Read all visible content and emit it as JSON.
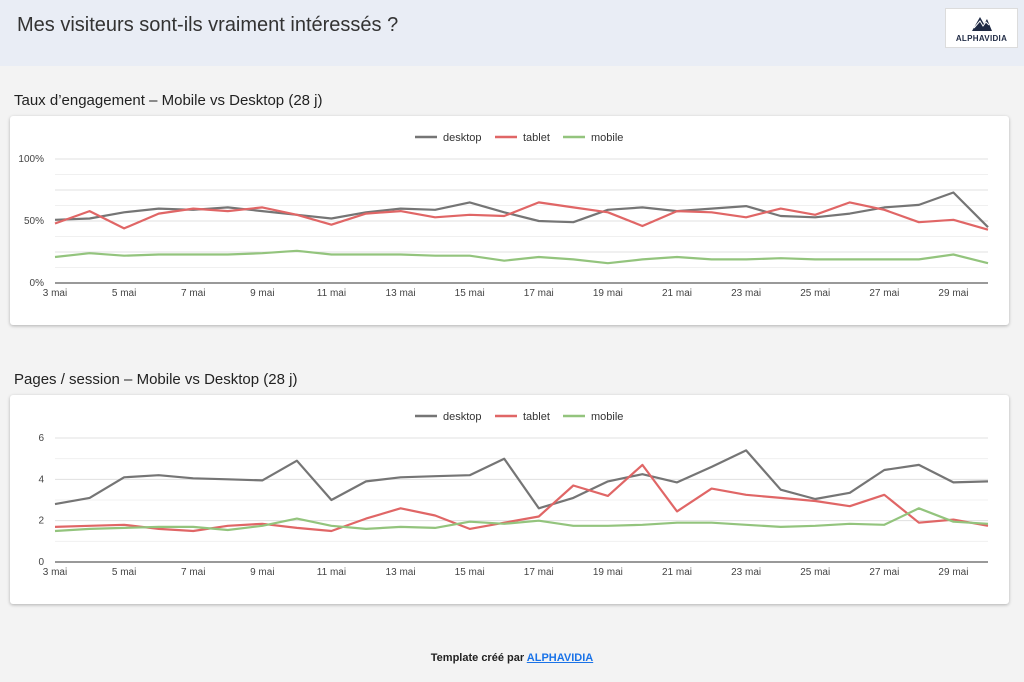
{
  "header": {
    "title": "Mes visiteurs sont-ils vraiment intéressés ?",
    "logo_text": "ALPHAVIDIA"
  },
  "footer": {
    "prefix": "Template créé par",
    "link_text": "ALPHAVIDIA"
  },
  "colors": {
    "desktop": "#757575",
    "tablet": "#e06666",
    "mobile": "#93c47d"
  },
  "chart_data": [
    {
      "type": "line",
      "title": "Taux d’engagement – Mobile vs Desktop (28 j)",
      "x": [
        "3 mai",
        "4 mai",
        "5 mai",
        "6 mai",
        "7 mai",
        "8 mai",
        "9 mai",
        "10 mai",
        "11 mai",
        "12 mai",
        "13 mai",
        "14 mai",
        "15 mai",
        "16 mai",
        "17 mai",
        "18 mai",
        "19 mai",
        "20 mai",
        "21 mai",
        "22 mai",
        "23 mai",
        "24 mai",
        "25 mai",
        "26 mai",
        "27 mai",
        "28 mai",
        "29 mai",
        "30 mai"
      ],
      "x_tick_labels": [
        "3 mai",
        "5 mai",
        "7 mai",
        "9 mai",
        "11 mai",
        "13 mai",
        "15 mai",
        "17 mai",
        "19 mai",
        "21 mai",
        "23 mai",
        "25 mai",
        "27 mai",
        "29 mai"
      ],
      "y_tick_labels": [
        "0%",
        "50%",
        "100%"
      ],
      "ylim": [
        0,
        100
      ],
      "legend_position": "top",
      "series": [
        {
          "name": "desktop",
          "values": [
            51,
            52,
            57,
            60,
            59,
            61,
            58,
            55,
            52,
            57,
            60,
            59,
            65,
            57,
            50,
            49,
            59,
            61,
            58,
            60,
            62,
            54,
            53,
            56,
            61,
            63,
            73,
            45
          ]
        },
        {
          "name": "tablet",
          "values": [
            48,
            58,
            44,
            56,
            60,
            58,
            61,
            55,
            47,
            56,
            58,
            53,
            55,
            54,
            65,
            61,
            57,
            46,
            58,
            57,
            53,
            60,
            55,
            65,
            59,
            49,
            51,
            43
          ]
        },
        {
          "name": "mobile",
          "values": [
            21,
            24,
            22,
            23,
            23,
            23,
            24,
            26,
            23,
            23,
            23,
            22,
            22,
            18,
            21,
            19,
            16,
            19,
            21,
            19,
            19,
            20,
            19,
            19,
            19,
            19,
            23,
            16
          ]
        }
      ]
    },
    {
      "type": "line",
      "title": "Pages / session – Mobile vs Desktop (28 j)",
      "x": [
        "3 mai",
        "4 mai",
        "5 mai",
        "6 mai",
        "7 mai",
        "8 mai",
        "9 mai",
        "10 mai",
        "11 mai",
        "12 mai",
        "13 mai",
        "14 mai",
        "15 mai",
        "16 mai",
        "17 mai",
        "18 mai",
        "19 mai",
        "20 mai",
        "21 mai",
        "22 mai",
        "23 mai",
        "24 mai",
        "25 mai",
        "26 mai",
        "27 mai",
        "28 mai",
        "29 mai",
        "30 mai"
      ],
      "x_tick_labels": [
        "3 mai",
        "5 mai",
        "7 mai",
        "9 mai",
        "11 mai",
        "13 mai",
        "15 mai",
        "17 mai",
        "19 mai",
        "21 mai",
        "23 mai",
        "25 mai",
        "27 mai",
        "29 mai"
      ],
      "y_tick_labels": [
        "0",
        "2",
        "4",
        "6"
      ],
      "ylim": [
        0,
        6
      ],
      "legend_position": "top",
      "series": [
        {
          "name": "desktop",
          "values": [
            2.8,
            3.1,
            4.1,
            4.2,
            4.05,
            4.0,
            3.95,
            4.9,
            3.0,
            3.9,
            4.1,
            4.15,
            4.2,
            5.0,
            2.6,
            3.1,
            3.9,
            4.25,
            3.85,
            4.6,
            5.4,
            3.5,
            3.05,
            3.35,
            4.45,
            4.7,
            3.85,
            3.9
          ]
        },
        {
          "name": "tablet",
          "values": [
            1.7,
            1.75,
            1.8,
            1.6,
            1.5,
            1.75,
            1.85,
            1.65,
            1.5,
            2.1,
            2.6,
            2.25,
            1.6,
            1.9,
            2.2,
            3.7,
            3.2,
            4.7,
            2.45,
            3.55,
            3.25,
            3.1,
            2.95,
            2.7,
            3.25,
            1.9,
            2.05,
            1.75
          ]
        },
        {
          "name": "mobile",
          "values": [
            1.5,
            1.6,
            1.65,
            1.7,
            1.7,
            1.55,
            1.75,
            2.1,
            1.75,
            1.6,
            1.7,
            1.65,
            1.95,
            1.85,
            2.0,
            1.75,
            1.75,
            1.8,
            1.9,
            1.9,
            1.8,
            1.7,
            1.75,
            1.85,
            1.8,
            2.6,
            1.95,
            1.85
          ]
        }
      ]
    }
  ]
}
